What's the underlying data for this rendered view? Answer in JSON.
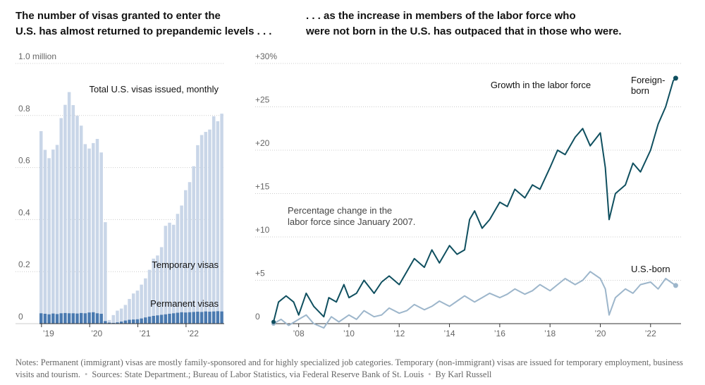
{
  "headings": {
    "left": "The number of visas granted to enter the\nU.S. has almost returned to prepandemic levels . . .",
    "right": ". . . as the increase in members of the labor force who\nwere not born in the U.S. has outpaced that in those who were."
  },
  "footer": {
    "notes": "Notes: Permanent (immigrant) visas are mostly family-sponsored and for highly specialized job categories. Temporary (non-immigrant) visas are issued for temporary employment, business visits and tourism.",
    "sources": "Sources: State Department.; Bureau of Labor Statistics, via Federal Reserve Bank of St. Louis",
    "byline": "By Karl Russell"
  },
  "colors": {
    "temporary": "#c9d6e8",
    "permanent": "#4a7ab0",
    "foreign_born": "#0f4f5f",
    "us_born": "#9db6cb",
    "grid": "#cccccc",
    "axis_text": "#666666"
  },
  "chart_data": [
    {
      "type": "bar",
      "title": "Total U.S. visas issued, monthly",
      "stacked": true,
      "ylim": [
        0,
        1.0
      ],
      "y_ticks": [
        0,
        0.2,
        0.4,
        0.6,
        0.8,
        1.0
      ],
      "y_tick_labels": [
        "0",
        "0.2",
        "0.4",
        "0.6",
        "0.8",
        "1.0 million"
      ],
      "x_tick_labels": [
        "’19",
        "’20",
        "’21",
        "’22"
      ],
      "x_tick_month_index": [
        0,
        12,
        24,
        36
      ],
      "start_month": "2018-10",
      "series": [
        {
          "name": "Permanent visas",
          "values": [
            0.04,
            0.038,
            0.036,
            0.039,
            0.037,
            0.04,
            0.041,
            0.04,
            0.04,
            0.039,
            0.041,
            0.04,
            0.043,
            0.044,
            0.04,
            0.038,
            0.01,
            0.004,
            0.003,
            0.005,
            0.008,
            0.012,
            0.015,
            0.016,
            0.017,
            0.02,
            0.024,
            0.027,
            0.03,
            0.032,
            0.034,
            0.036,
            0.038,
            0.04,
            0.042,
            0.044,
            0.043,
            0.044,
            0.045,
            0.046,
            0.045,
            0.047,
            0.046,
            0.047,
            0.048,
            0.047
          ]
        },
        {
          "name": "Temporary visas",
          "values": [
            0.7,
            0.63,
            0.6,
            0.63,
            0.65,
            0.75,
            0.8,
            0.85,
            0.8,
            0.76,
            0.72,
            0.65,
            0.63,
            0.65,
            0.67,
            0.62,
            0.38,
            0.01,
            0.03,
            0.045,
            0.05,
            0.06,
            0.08,
            0.1,
            0.11,
            0.13,
            0.15,
            0.18,
            0.22,
            0.23,
            0.26,
            0.34,
            0.35,
            0.34,
            0.38,
            0.41,
            0.47,
            0.5,
            0.56,
            0.64,
            0.68,
            0.69,
            0.7,
            0.75,
            0.73,
            0.76
          ]
        }
      ],
      "totals": [
        0.74,
        0.668,
        0.636,
        0.669,
        0.687,
        0.79,
        0.841,
        0.89,
        0.84,
        0.799,
        0.761,
        0.69,
        0.673,
        0.694,
        0.71,
        0.658,
        0.39,
        0.014,
        0.033,
        0.05,
        0.058,
        0.072,
        0.095,
        0.116,
        0.127,
        0.15,
        0.174,
        0.207,
        0.25,
        0.262,
        0.294,
        0.376,
        0.388,
        0.38,
        0.422,
        0.454,
        0.513,
        0.544,
        0.605,
        0.686,
        0.725,
        0.737,
        0.746,
        0.797,
        0.778,
        0.807
      ]
    },
    {
      "type": "line",
      "title": "Growth in the labor force",
      "subtitle": "Percentage change in the labor force since January 2007.",
      "ylim": [
        0,
        30
      ],
      "y_ticks": [
        0,
        5,
        10,
        15,
        20,
        25,
        30
      ],
      "y_tick_labels": [
        "0",
        "+5",
        "+10",
        "+15",
        "+20",
        "+25",
        "+30%"
      ],
      "xlim": [
        2007.0,
        2023.1
      ],
      "x_tick_values": [
        2008,
        2010,
        2012,
        2014,
        2016,
        2018,
        2020,
        2022
      ],
      "x_tick_labels": [
        "’08",
        "’10",
        "’12",
        "’14",
        "’16",
        "’18",
        "’20",
        "’22"
      ],
      "series": [
        {
          "name": "Foreign-born",
          "label": "Foreign-\nborn",
          "x": [
            2007.0,
            2007.2,
            2007.5,
            2007.8,
            2008.0,
            2008.3,
            2008.6,
            2009.0,
            2009.2,
            2009.5,
            2009.8,
            2010.0,
            2010.3,
            2010.6,
            2011.0,
            2011.3,
            2011.6,
            2012.0,
            2012.3,
            2012.6,
            2013.0,
            2013.3,
            2013.6,
            2014.0,
            2014.3,
            2014.6,
            2014.8,
            2015.0,
            2015.3,
            2015.6,
            2016.0,
            2016.3,
            2016.6,
            2017.0,
            2017.3,
            2017.6,
            2018.0,
            2018.3,
            2018.6,
            2019.0,
            2019.3,
            2019.6,
            2020.0,
            2020.2,
            2020.35,
            2020.6,
            2021.0,
            2021.3,
            2021.6,
            2022.0,
            2022.3,
            2022.6,
            2022.9,
            2023.0
          ],
          "y": [
            0.2,
            2.5,
            3.2,
            2.5,
            1.0,
            3.5,
            2.0,
            0.8,
            3.0,
            2.5,
            4.5,
            3.0,
            3.5,
            5.0,
            3.5,
            4.8,
            5.5,
            4.5,
            6.0,
            7.5,
            6.5,
            8.5,
            7.0,
            9.0,
            8.0,
            8.5,
            12.0,
            13.0,
            11.0,
            12.0,
            14.0,
            13.5,
            15.5,
            14.5,
            16.0,
            15.5,
            18.0,
            20.0,
            19.5,
            21.5,
            22.5,
            20.5,
            22.0,
            18.0,
            12.0,
            15.0,
            16.0,
            18.5,
            17.5,
            20.0,
            23.0,
            25.0,
            28.0,
            28.3
          ]
        },
        {
          "name": "U.S.-born",
          "label": "U.S.-born",
          "x": [
            2007.0,
            2007.3,
            2007.6,
            2008.0,
            2008.3,
            2008.6,
            2009.0,
            2009.3,
            2009.6,
            2010.0,
            2010.3,
            2010.6,
            2011.0,
            2011.3,
            2011.6,
            2012.0,
            2012.3,
            2012.6,
            2013.0,
            2013.3,
            2013.6,
            2014.0,
            2014.3,
            2014.6,
            2015.0,
            2015.3,
            2015.6,
            2016.0,
            2016.3,
            2016.6,
            2017.0,
            2017.3,
            2017.6,
            2018.0,
            2018.3,
            2018.6,
            2019.0,
            2019.3,
            2019.6,
            2020.0,
            2020.2,
            2020.35,
            2020.6,
            2021.0,
            2021.3,
            2021.6,
            2022.0,
            2022.3,
            2022.6,
            2023.0
          ],
          "y": [
            0.0,
            0.5,
            -0.2,
            0.5,
            1.0,
            0.0,
            -0.5,
            0.8,
            0.2,
            1.0,
            0.5,
            1.5,
            0.8,
            1.0,
            1.8,
            1.2,
            1.5,
            2.2,
            1.6,
            2.0,
            2.6,
            2.0,
            2.6,
            3.2,
            2.5,
            3.0,
            3.5,
            3.0,
            3.4,
            4.0,
            3.4,
            3.8,
            4.5,
            3.8,
            4.5,
            5.2,
            4.5,
            5.0,
            6.0,
            5.2,
            4.0,
            1.0,
            3.0,
            4.0,
            3.5,
            4.5,
            4.8,
            4.0,
            5.2,
            4.4
          ]
        }
      ]
    }
  ]
}
